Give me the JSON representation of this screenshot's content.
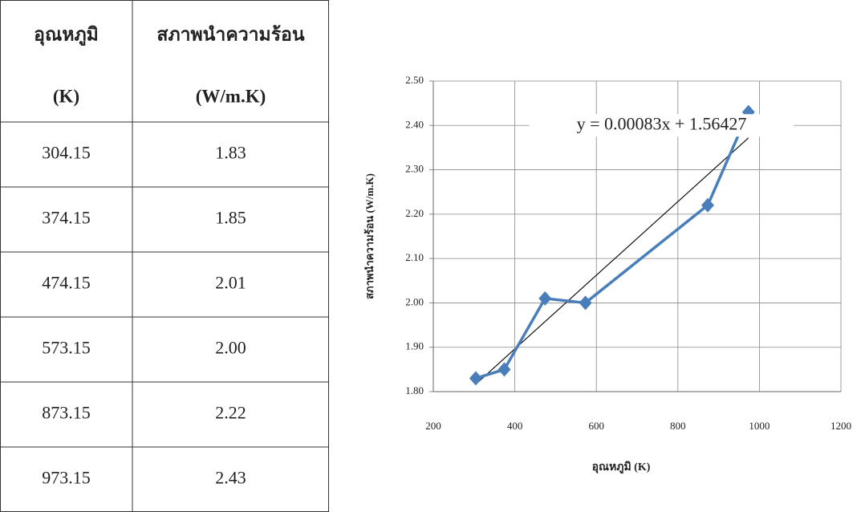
{
  "table": {
    "header": [
      [
        "อุณหภูมิ",
        "สภาพนำความร้อน"
      ],
      [
        "(K)",
        "(W/m.K)"
      ]
    ],
    "rows": [
      [
        "304.15",
        "1.83"
      ],
      [
        "374.15",
        "1.85"
      ],
      [
        "474.15",
        "2.01"
      ],
      [
        "573.15",
        "2.00"
      ],
      [
        "873.15",
        "2.22"
      ],
      [
        "973.15",
        "2.43"
      ]
    ]
  },
  "chart_data": {
    "type": "line",
    "x": [
      304.15,
      374.15,
      474.15,
      573.15,
      873.15,
      973.15
    ],
    "series": [
      {
        "color": "#4a7ebb",
        "values": [
          1.83,
          1.85,
          2.01,
          2.0,
          2.22,
          2.43
        ]
      }
    ],
    "xlim": [
      200,
      1200
    ],
    "xticks": [
      200,
      400,
      600,
      800,
      1000,
      1200
    ],
    "ylim": [
      1.8,
      2.5
    ],
    "yticks": [
      {
        "value": 1.8,
        "label": "1.80"
      },
      {
        "value": 1.9,
        "label": "1.90"
      },
      {
        "value": 2.0,
        "label": "2.00"
      },
      {
        "value": 2.1,
        "label": "2.10"
      },
      {
        "value": 2.2,
        "label": "2.20"
      },
      {
        "value": 2.3,
        "label": "2.30"
      },
      {
        "value": 2.4,
        "label": "2.40"
      },
      {
        "value": 2.5,
        "label": "2.50"
      }
    ],
    "xlabel": "อุณหภูมิ (K)",
    "ylabel": "สภาพนำความร้อน (W/m.K)",
    "trendline": {
      "equation": "y = 0.00083x + 1.56427",
      "slope": 0.00083,
      "intercept": 1.56427
    },
    "grid": true
  }
}
